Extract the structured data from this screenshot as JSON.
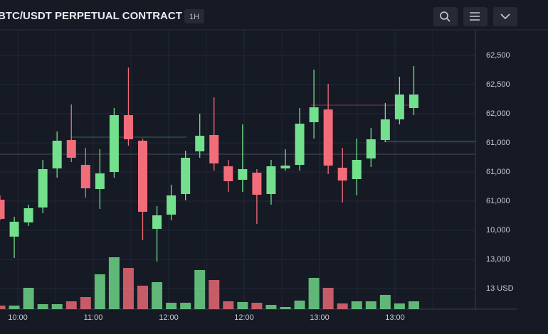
{
  "chart_data": {
    "type": "candlestick",
    "title": "BTC/USDT PERPETUAL CONTRACT",
    "interval": "1H",
    "axis_labels": [
      "62,500",
      "62,500",
      "62,000",
      "61,000",
      "61,000",
      "61,000",
      "10,000",
      "13,000",
      "13 USD"
    ],
    "x_labels": [
      "10:00",
      "11:00",
      "12:00",
      "12:00",
      "13:00",
      "13:00"
    ],
    "ylim": [
      59900,
      63100
    ],
    "volume_lim": [
      0,
      80
    ],
    "up_color": "#72e08c",
    "down_color": "#f26d79",
    "open": [
      60790,
      60270,
      60470,
      60680,
      61230,
      61630,
      61280,
      60940,
      61180,
      61980,
      61620,
      60380,
      60580,
      60870,
      61470,
      61700,
      61260,
      61070,
      61170,
      60870,
      61230,
      61280,
      61880,
      62060,
      61240,
      61080,
      61370,
      61630,
      61920,
      62080
    ],
    "high": [
      60850,
      60550,
      60720,
      61350,
      61750,
      62130,
      61520,
      61500,
      62080,
      62650,
      61650,
      60700,
      61000,
      61480,
      62000,
      62230,
      61350,
      61850,
      61220,
      61350,
      61500,
      62080,
      62620,
      62420,
      61520,
      61650,
      61800,
      62150,
      62520,
      62670
    ],
    "low": [
      60500,
      59970,
      60420,
      60600,
      61100,
      61320,
      60820,
      60660,
      61100,
      61550,
      60220,
      59920,
      60500,
      60780,
      61380,
      61200,
      60900,
      60900,
      60450,
      60720,
      61200,
      61200,
      61650,
      61150,
      60750,
      60850,
      61250,
      61600,
      61850,
      61980
    ],
    "close": [
      60520,
      60480,
      60670,
      61220,
      61620,
      61380,
      60950,
      61160,
      61980,
      61640,
      60620,
      60570,
      60850,
      61380,
      61690,
      61300,
      61050,
      61220,
      60860,
      61260,
      61270,
      61860,
      62090,
      61270,
      61060,
      61350,
      61640,
      61920,
      62270,
      62270
    ],
    "volume": [
      5,
      5,
      30,
      7,
      7,
      11,
      17,
      49,
      73,
      58,
      33,
      38,
      9,
      9,
      55,
      41,
      11,
      10,
      9,
      6,
      3,
      12,
      44,
      30,
      8,
      11,
      11,
      20,
      8,
      11
    ]
  }
}
